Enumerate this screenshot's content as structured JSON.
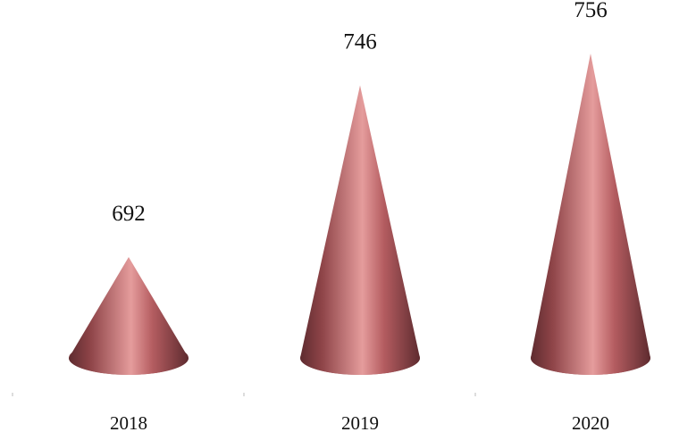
{
  "chart_data": {
    "type": "bar",
    "shape": "cone",
    "categories": [
      "2018",
      "2019",
      "2020"
    ],
    "values": [
      692,
      746,
      756
    ],
    "value_labels": [
      "692",
      "746",
      "756"
    ],
    "title": "",
    "xlabel": "",
    "ylabel": "",
    "ylim": [
      680,
      760
    ],
    "grid": false,
    "legend": "none",
    "colors": {
      "cone_light": "#e59c9c",
      "cone_mid": "#b45c60",
      "cone_dark": "#5e2b2f",
      "axis_tick": "#bbbbbb"
    }
  }
}
